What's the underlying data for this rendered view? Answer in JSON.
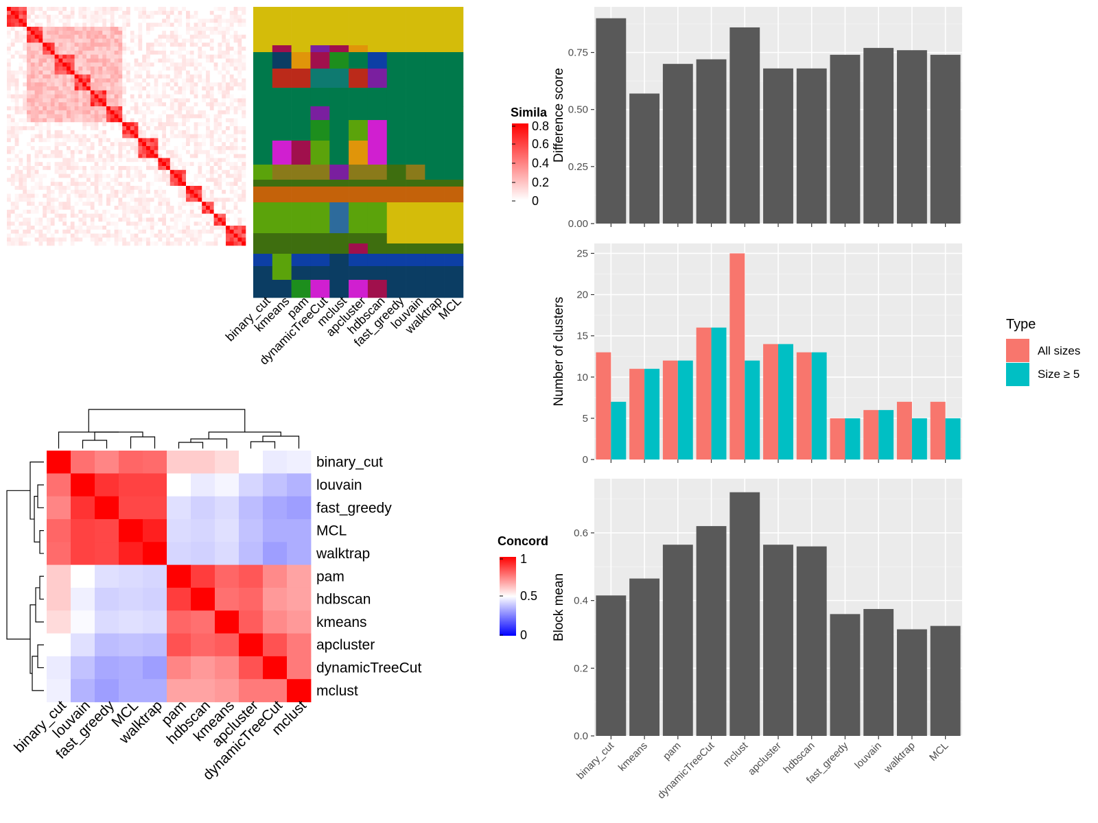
{
  "methods": [
    "binary_cut",
    "kmeans",
    "pam",
    "dynamicTreeCut",
    "mclust",
    "apcluster",
    "hdbscan",
    "fast_greedy",
    "louvain",
    "walktrap",
    "MCL"
  ],
  "colors": {
    "panel_bg": "#EBEBEB",
    "bar_dark": "#595959",
    "all_sizes": "#F8766D",
    "size_ge5": "#00BFC4",
    "heat_red": "#FF0000",
    "heat_white": "#FFFFFF",
    "heat_blue": "#0000FF"
  },
  "similarity_legend": {
    "title": "Simila",
    "ticks": [
      "0.8",
      "0.6",
      "0.4",
      "0.2",
      "0"
    ]
  },
  "concordance_legend": {
    "title": "Concord",
    "ticks": [
      "1",
      "0.5",
      "0"
    ]
  },
  "type_legend": {
    "title": "Type",
    "items": [
      "All sizes",
      "Size ≥ 5"
    ]
  },
  "cluster_palette": [
    "#D4BC0A",
    "#00794B",
    "#0B3D63",
    "#5BA30B",
    "#C4620A",
    "#3E6E0F",
    "#0D3FA5",
    "#7A1F9F",
    "#D01FD0",
    "#A0104C",
    "#8A7A1A",
    "#E0950A",
    "#1D8E1D",
    "#2C3A96",
    "#0E7A70",
    "#C71C82",
    "#4A1FB0",
    "#BB2A1A",
    "#2D6B9C"
  ],
  "concordance_heatmap": {
    "order": [
      "binary_cut",
      "louvain",
      "fast_greedy",
      "MCL",
      "walktrap",
      "pam",
      "hdbscan",
      "kmeans",
      "apcluster",
      "dynamicTreeCut",
      "mclust"
    ],
    "values": [
      [
        1.0,
        0.78,
        0.74,
        0.8,
        0.79,
        0.6,
        0.6,
        0.57,
        0.5,
        0.46,
        0.47
      ],
      [
        0.78,
        1.0,
        0.9,
        0.87,
        0.87,
        0.5,
        0.46,
        0.48,
        0.42,
        0.38,
        0.35
      ],
      [
        0.74,
        0.9,
        1.0,
        0.86,
        0.86,
        0.44,
        0.41,
        0.43,
        0.37,
        0.33,
        0.31
      ],
      [
        0.8,
        0.87,
        0.86,
        1.0,
        0.94,
        0.43,
        0.42,
        0.44,
        0.38,
        0.34,
        0.34
      ],
      [
        0.79,
        0.87,
        0.86,
        0.94,
        1.0,
        0.42,
        0.41,
        0.43,
        0.37,
        0.31,
        0.34
      ],
      [
        0.6,
        0.5,
        0.44,
        0.43,
        0.42,
        1.0,
        0.88,
        0.8,
        0.83,
        0.73,
        0.68
      ],
      [
        0.6,
        0.47,
        0.41,
        0.42,
        0.41,
        0.88,
        1.0,
        0.78,
        0.8,
        0.7,
        0.68
      ],
      [
        0.57,
        0.49,
        0.43,
        0.44,
        0.43,
        0.8,
        0.78,
        1.0,
        0.82,
        0.73,
        0.7
      ],
      [
        0.5,
        0.44,
        0.37,
        0.38,
        0.37,
        0.84,
        0.8,
        0.82,
        1.0,
        0.84,
        0.76
      ],
      [
        0.46,
        0.38,
        0.33,
        0.34,
        0.31,
        0.74,
        0.7,
        0.73,
        0.84,
        1.0,
        0.76
      ],
      [
        0.47,
        0.35,
        0.31,
        0.34,
        0.34,
        0.68,
        0.68,
        0.7,
        0.76,
        0.76,
        1.0
      ]
    ]
  },
  "chart_data": [
    {
      "type": "bar",
      "categories": [
        "binary_cut",
        "kmeans",
        "pam",
        "dynamicTreeCut",
        "mclust",
        "apcluster",
        "hdbscan",
        "fast_greedy",
        "louvain",
        "walktrap",
        "MCL"
      ],
      "values": [
        0.9,
        0.57,
        0.7,
        0.72,
        0.86,
        0.68,
        0.68,
        0.74,
        0.77,
        0.76,
        0.74
      ],
      "ylabel": "Difference score",
      "ylim": [
        0,
        0.95
      ],
      "yticks": [
        0.0,
        0.25,
        0.5,
        0.75
      ],
      "ytick_labels": [
        "0.00",
        "0.25",
        "0.50",
        "0.75"
      ],
      "grid": true
    },
    {
      "type": "bar",
      "categories": [
        "binary_cut",
        "kmeans",
        "pam",
        "dynamicTreeCut",
        "mclust",
        "apcluster",
        "hdbscan",
        "fast_greedy",
        "louvain",
        "walktrap",
        "MCL"
      ],
      "series": [
        {
          "name": "All sizes",
          "values": [
            13,
            11,
            12,
            16,
            25,
            14,
            13,
            5,
            6,
            7,
            7
          ]
        },
        {
          "name": "Size ≥ 5",
          "values": [
            7,
            11,
            12,
            16,
            12,
            14,
            13,
            5,
            6,
            5,
            5
          ]
        }
      ],
      "ylabel": "Number of clusters",
      "ylim": [
        0,
        26.2
      ],
      "yticks": [
        0,
        5,
        10,
        15,
        20,
        25
      ],
      "ytick_labels": [
        "0",
        "5",
        "10",
        "15",
        "20",
        "25"
      ],
      "legend": "right",
      "grid": true
    },
    {
      "type": "bar",
      "categories": [
        "binary_cut",
        "kmeans",
        "pam",
        "dynamicTreeCut",
        "mclust",
        "apcluster",
        "hdbscan",
        "fast_greedy",
        "louvain",
        "walktrap",
        "MCL"
      ],
      "values": [
        0.415,
        0.465,
        0.565,
        0.62,
        0.72,
        0.565,
        0.56,
        0.36,
        0.375,
        0.315,
        0.325
      ],
      "ylabel": "Block mean",
      "ylim": [
        0,
        0.76
      ],
      "yticks": [
        0.0,
        0.2,
        0.4,
        0.6
      ],
      "ytick_labels": [
        "0.0",
        "0.2",
        "0.4",
        "0.6"
      ],
      "grid": true
    }
  ]
}
